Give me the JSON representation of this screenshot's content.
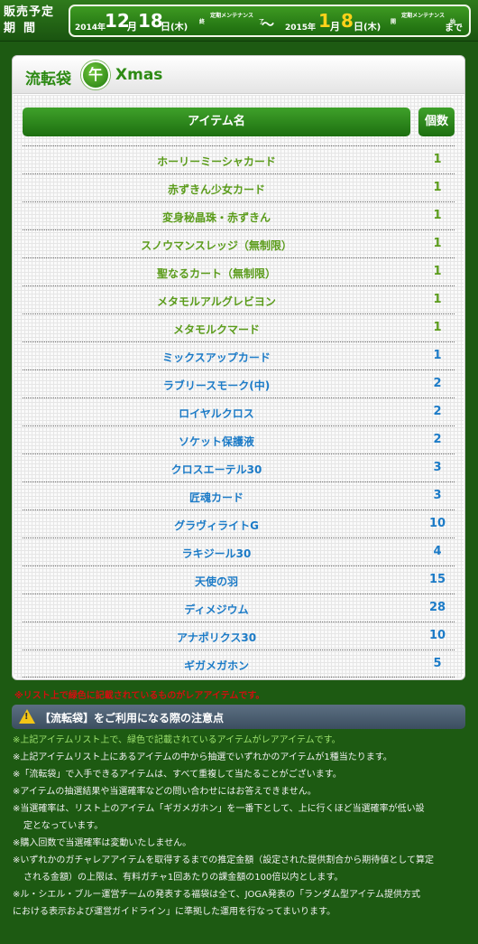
{
  "header": {
    "period_label_line1": "販売予定",
    "period_label_line2": "期間",
    "start": {
      "year": "2014年",
      "month": "12",
      "month_unit": "月",
      "day": "18",
      "day_unit": "日",
      "weekday": "(木)",
      "maint_line1": "定期メンテナンス",
      "maint_line2": "終　　　　　　　　　　了"
    },
    "tilde": "～",
    "end": {
      "year": "2015年",
      "month": "1",
      "month_unit": "月",
      "day": "8",
      "day_unit": "日",
      "weekday": "(木)",
      "maint_line1": "定期メンテナンス",
      "maint_line2": "開　　　　　　　　　　始",
      "suffix": "まで"
    }
  },
  "panel": {
    "title_left": "流転袋",
    "emblem": "午",
    "title_right": "Xmas",
    "col_item": "アイテム名",
    "col_count": "個数"
  },
  "items": [
    {
      "name": "ホーリーミーシャカード",
      "count": "1",
      "rare": true
    },
    {
      "name": "赤ずきん少女カード",
      "count": "1",
      "rare": true
    },
    {
      "name": "変身秘晶珠・赤ずきん",
      "count": "1",
      "rare": true
    },
    {
      "name": "スノウマンスレッジ（無制限）",
      "count": "1",
      "rare": true
    },
    {
      "name": "聖なるカート（無制限）",
      "count": "1",
      "rare": true
    },
    {
      "name": "メタモルアルグレビヨン",
      "count": "1",
      "rare": true
    },
    {
      "name": "メタモルクマード",
      "count": "1",
      "rare": true
    },
    {
      "name": "ミックスアップカード",
      "count": "1",
      "rare": false
    },
    {
      "name": "ラブリースモーク(中)",
      "count": "2",
      "rare": false
    },
    {
      "name": "ロイヤルクロス",
      "count": "2",
      "rare": false
    },
    {
      "name": "ソケット保護液",
      "count": "2",
      "rare": false
    },
    {
      "name": "クロスエーテル30",
      "count": "3",
      "rare": false
    },
    {
      "name": "匠魂カード",
      "count": "3",
      "rare": false
    },
    {
      "name": "グラヴィライトG",
      "count": "10",
      "rare": false
    },
    {
      "name": "ラキジール30",
      "count": "4",
      "rare": false
    },
    {
      "name": "天使の羽",
      "count": "15",
      "rare": false
    },
    {
      "name": "ディメジウム",
      "count": "28",
      "rare": false
    },
    {
      "name": "アナポリクス30",
      "count": "10",
      "rare": false
    },
    {
      "name": "ギガメガホン",
      "count": "5",
      "rare": false
    }
  ],
  "colors": {
    "rare_item": "#5b9c1b",
    "normal_item": "#1c7bc7",
    "rare_note": "#d01010",
    "note_green": "#9de26d"
  },
  "rare_note": "※リスト上で緑色に記載されているものがレアアイテムです。",
  "caution": {
    "icon": "!",
    "title": "【流転袋】をご利用になる際の注意点"
  },
  "notes": {
    "n1": "※上記アイテムリスト上で、緑色で記載されているアイテムがレアアイテムです。",
    "n2": "※上記アイテムリスト上にあるアイテムの中から抽選でいずれかのアイテムが1種当たります。",
    "n3": "※「流転袋」で入手できるアイテムは、すべて重複して当たることがございます。",
    "n4": "※アイテムの抽選結果や当選確率などの問い合わせにはお答えできません。",
    "n5a": "※当選確率は、リスト上のアイテム「ギガメガホン」を一番下として、上に行くほど当選確率が低い設",
    "n5b": "定となっています。",
    "n6": "※購入回数で当選確率は変動いたしません。",
    "n7a": "※いずれかのガチャレアアイテムを取得するまでの推定金額（設定された提供割合から期待値として算定",
    "n7b": "される金額）の上限は、有料ガチャ1回あたりの課金額の100倍以内とします。",
    "n8a": "※ル・シエル・ブルー運営チームの発表する福袋は全て、JOGA発表の「ランダム型アイテム提供方式",
    "n8b": "における表示および運営ガイドライン」に準拠した運用を行なってまいります。"
  }
}
